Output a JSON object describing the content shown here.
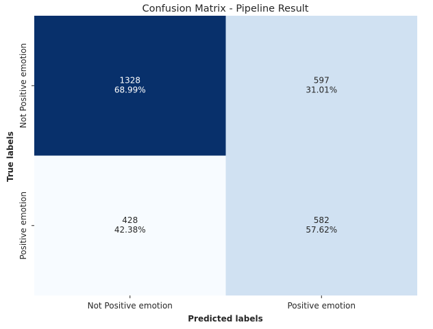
{
  "chart_data": {
    "type": "heatmap",
    "title": "Confusion Matrix - Pipeline Result",
    "xlabel": "Predicted labels",
    "ylabel": "True labels",
    "x_categories": [
      "Not Positive emotion",
      "Positive emotion"
    ],
    "y_categories": [
      "Not Positive emotion",
      "Positive emotion"
    ],
    "values": [
      [
        1328,
        597
      ],
      [
        428,
        582
      ]
    ],
    "row_percentages": [
      "68.99%",
      "31.01%",
      "42.38%",
      "57.62%"
    ],
    "cell_labels": [
      [
        "1328",
        "68.99%"
      ],
      [
        "597",
        "31.01%"
      ],
      [
        "428",
        "42.38%"
      ],
      [
        "582",
        "57.62%"
      ]
    ],
    "colormap": "Blues",
    "color_scale": "row-normalized",
    "colorbar": false,
    "grid": false
  },
  "colors": {
    "cell_fills": [
      "#08306b",
      "#d0e1f2",
      "#f7fbff",
      "#d0e1f2"
    ],
    "cell_text": [
      "#ffffff",
      "#262626",
      "#262626",
      "#262626"
    ],
    "axis_text": "#262626"
  }
}
